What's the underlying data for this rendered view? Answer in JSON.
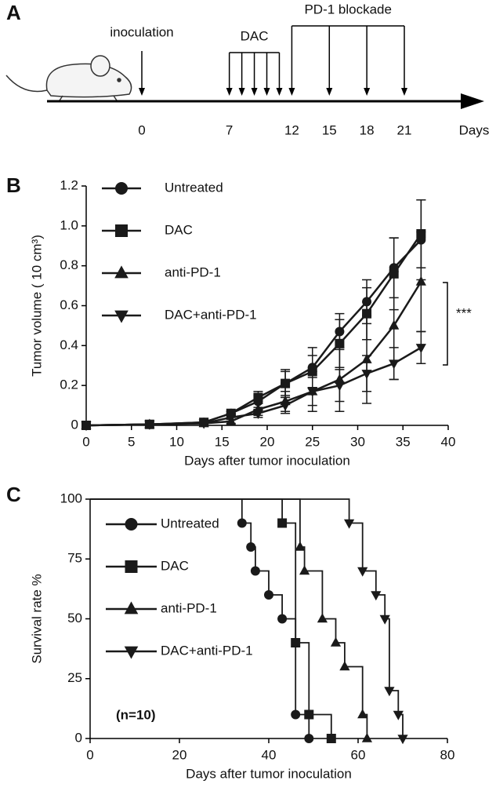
{
  "panel_labels": [
    "A",
    "B",
    "C"
  ],
  "timeline": {
    "inoculation_label": "inoculation",
    "dac_label": "DAC",
    "pd1_label": "PD-1 blockade",
    "axis_label": "Days",
    "inoculation_day": 0,
    "dac_days": [
      7,
      8,
      9,
      10,
      11
    ],
    "pd1_days": [
      12,
      15,
      18,
      21
    ],
    "tick_days": [
      0,
      7,
      12,
      15,
      18,
      21
    ]
  },
  "chart_data": [
    {
      "type": "line",
      "x_label": "Days after tumor inoculation",
      "y_label": "Tumor volume ( 10 cm³)",
      "x": [
        0,
        7,
        13,
        16,
        19,
        22,
        25,
        28,
        31,
        34,
        37
      ],
      "series": [
        {
          "name": "Untreated",
          "color": "#1a1a1a",
          "marker": "circle",
          "values": [
            0,
            0.005,
            0.015,
            0.06,
            0.12,
            0.21,
            0.29,
            0.47,
            0.62,
            0.79,
            0.93
          ],
          "errors": [
            0,
            0,
            0,
            0.01,
            0.03,
            0.07,
            0.1,
            0.09,
            0.11,
            0.15,
            0.2
          ]
        },
        {
          "name": "DAC",
          "color": "#1a1a1a",
          "marker": "square",
          "values": [
            0,
            0.005,
            0.015,
            0.06,
            0.14,
            0.21,
            0.27,
            0.41,
            0.56,
            0.76,
            0.96
          ],
          "errors": [
            0,
            0,
            0,
            0.01,
            0.03,
            0.06,
            0.08,
            0.12,
            0.13,
            0.18,
            0.17
          ]
        },
        {
          "name": "anti-PD-1",
          "color": "#1a1a1a",
          "marker": "triangle-up",
          "values": [
            0,
            0.005,
            0.01,
            0.02,
            0.08,
            0.12,
            0.17,
            0.23,
            0.33,
            0.5,
            0.72
          ],
          "errors": [
            0,
            0,
            0,
            0.01,
            0.03,
            0.05,
            0.1,
            0.16,
            0.22,
            0.27,
            0.25
          ]
        },
        {
          "name": "DAC+anti-PD-1",
          "color": "#1a1a1a",
          "marker": "triangle-down",
          "values": [
            0,
            0.005,
            0.01,
            0.04,
            0.06,
            0.1,
            0.17,
            0.2,
            0.26,
            0.31,
            0.39
          ],
          "errors": [
            0,
            0,
            0,
            0.01,
            0.02,
            0.04,
            0.07,
            0.08,
            0.09,
            0.08,
            0.08
          ]
        }
      ],
      "xlim": [
        0,
        40
      ],
      "xticks": [
        0,
        5,
        10,
        15,
        20,
        25,
        30,
        35,
        40
      ],
      "ylim": [
        0,
        1.2
      ],
      "yticks": [
        0,
        0.2,
        0.4,
        0.6,
        0.8,
        {
          "value": 1,
          "label": "1.0"
        },
        1.2
      ],
      "legend": "upper left",
      "annotation": "***"
    },
    {
      "type": "step",
      "x_label": "Days after tumor inoculation",
      "y_label": "Survival rate %",
      "series": [
        {
          "name": "Untreated",
          "color": "#1a1a1a",
          "marker": "circle",
          "x": [
            0,
            34,
            36,
            37,
            40,
            43,
            46,
            49
          ],
          "values": [
            100,
            90,
            80,
            70,
            60,
            50,
            10,
            0
          ]
        },
        {
          "name": "DAC",
          "color": "#1a1a1a",
          "marker": "square",
          "x": [
            0,
            43,
            46,
            49,
            54
          ],
          "values": [
            100,
            90,
            40,
            10,
            0
          ]
        },
        {
          "name": "anti-PD-1",
          "color": "#1a1a1a",
          "marker": "triangle-up",
          "x": [
            0,
            47,
            48,
            52,
            55,
            57,
            61,
            62
          ],
          "values": [
            100,
            80,
            70,
            50,
            40,
            30,
            10,
            0
          ]
        },
        {
          "name": "DAC+anti-PD-1",
          "color": "#1a1a1a",
          "marker": "triangle-down",
          "x": [
            0,
            58,
            61,
            64,
            66,
            67,
            69,
            70
          ],
          "values": [
            100,
            90,
            70,
            60,
            50,
            20,
            10,
            0
          ]
        }
      ],
      "xlim": [
        0,
        80
      ],
      "xticks": [
        0,
        20,
        40,
        60,
        80
      ],
      "ylim": [
        0,
        100
      ],
      "yticks": [
        0,
        25,
        50,
        75,
        100
      ],
      "legend": "upper left",
      "annotation": "(n=10)"
    }
  ]
}
